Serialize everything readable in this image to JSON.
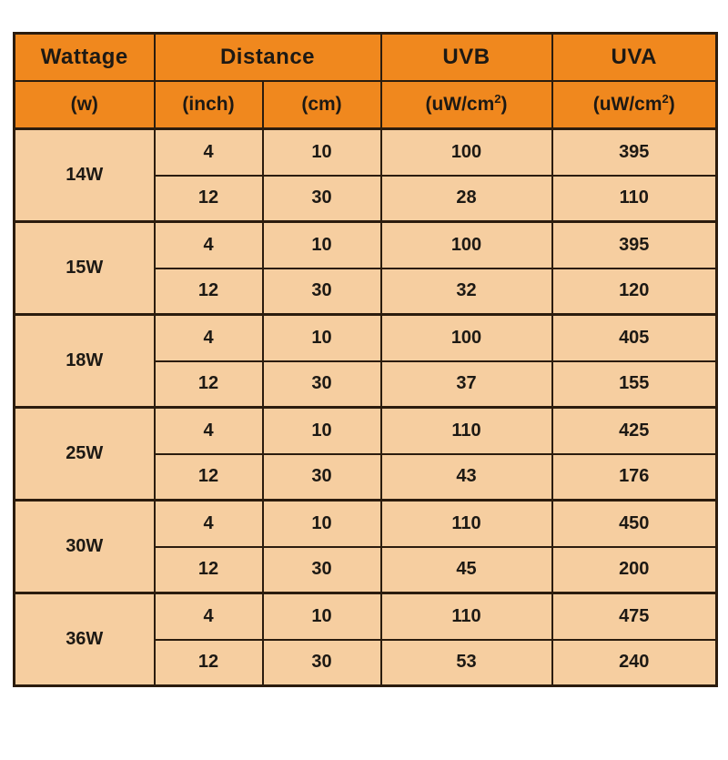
{
  "colors": {
    "header_bg": "#F0881E",
    "body_bg": "#F6CEA0",
    "border": "#2B1C0E",
    "text": "#1D1914",
    "page_bg": "#FFFFFF"
  },
  "table": {
    "header": {
      "row1": {
        "wattage": "Wattage",
        "distance": "Distance",
        "uvb": "UVB",
        "uva": "UVA"
      },
      "row2": {
        "wattage_unit": "(w)",
        "inch_unit": "(inch)",
        "cm_unit": "(cm)",
        "uv_unit_prefix": "(uW/cm",
        "uv_unit_sup": "2",
        "uv_unit_suffix": ")"
      }
    },
    "groups": [
      {
        "wattage": "14W",
        "rows": [
          {
            "inch": "4",
            "cm": "10",
            "uvb": "100",
            "uva": "395"
          },
          {
            "inch": "12",
            "cm": "30",
            "uvb": "28",
            "uva": "110"
          }
        ]
      },
      {
        "wattage": "15W",
        "rows": [
          {
            "inch": "4",
            "cm": "10",
            "uvb": "100",
            "uva": "395"
          },
          {
            "inch": "12",
            "cm": "30",
            "uvb": "32",
            "uva": "120"
          }
        ]
      },
      {
        "wattage": "18W",
        "rows": [
          {
            "inch": "4",
            "cm": "10",
            "uvb": "100",
            "uva": "405"
          },
          {
            "inch": "12",
            "cm": "30",
            "uvb": "37",
            "uva": "155"
          }
        ]
      },
      {
        "wattage": "25W",
        "rows": [
          {
            "inch": "4",
            "cm": "10",
            "uvb": "110",
            "uva": "425"
          },
          {
            "inch": "12",
            "cm": "30",
            "uvb": "43",
            "uva": "176"
          }
        ]
      },
      {
        "wattage": "30W",
        "rows": [
          {
            "inch": "4",
            "cm": "10",
            "uvb": "110",
            "uva": "450"
          },
          {
            "inch": "12",
            "cm": "30",
            "uvb": "45",
            "uva": "200"
          }
        ]
      },
      {
        "wattage": "36W",
        "rows": [
          {
            "inch": "4",
            "cm": "10",
            "uvb": "110",
            "uva": "475"
          },
          {
            "inch": "12",
            "cm": "30",
            "uvb": "53",
            "uva": "240"
          }
        ]
      }
    ]
  },
  "chart_data": {
    "type": "table",
    "title": "",
    "columns": [
      "Wattage (w)",
      "Distance (inch)",
      "Distance (cm)",
      "UVB (uW/cm²)",
      "UVA (uW/cm²)"
    ],
    "rows": [
      [
        "14W",
        4,
        10,
        100,
        395
      ],
      [
        "14W",
        12,
        30,
        28,
        110
      ],
      [
        "15W",
        4,
        10,
        100,
        395
      ],
      [
        "15W",
        12,
        30,
        32,
        120
      ],
      [
        "18W",
        4,
        10,
        100,
        405
      ],
      [
        "18W",
        12,
        30,
        37,
        155
      ],
      [
        "25W",
        4,
        10,
        110,
        425
      ],
      [
        "25W",
        12,
        30,
        43,
        176
      ],
      [
        "30W",
        4,
        10,
        110,
        450
      ],
      [
        "30W",
        12,
        30,
        45,
        200
      ],
      [
        "36W",
        4,
        10,
        110,
        475
      ],
      [
        "36W",
        12,
        30,
        53,
        240
      ]
    ]
  }
}
